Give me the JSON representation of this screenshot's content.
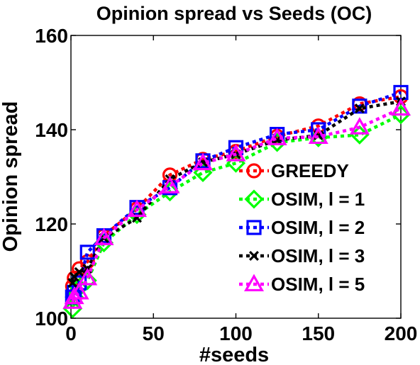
{
  "chart_data": {
    "type": "line",
    "title": "Opinion spread vs Seeds (OC)",
    "xlabel": "#seeds",
    "ylabel": "Opinion spread",
    "xlim": [
      0,
      200
    ],
    "ylim": [
      100,
      160
    ],
    "xticks": [
      0,
      50,
      100,
      150,
      200
    ],
    "yticks": [
      100,
      120,
      140,
      160
    ],
    "grid": false,
    "legend_position": "lower-right",
    "series": [
      {
        "name": "GREEDY",
        "color": "#ff0000",
        "marker": "circle",
        "x": [
          1,
          2,
          5,
          10,
          20,
          40,
          60,
          80,
          100,
          125,
          150,
          175,
          200
        ],
        "y": [
          106.8,
          108.5,
          110.5,
          112.0,
          117.5,
          123.2,
          130.4,
          133.7,
          135.4,
          138.6,
          140.8,
          145.5,
          147.0
        ]
      },
      {
        "name": "OSIM, l = 1",
        "color": "#00ff00",
        "marker": "diamond",
        "x": [
          1,
          2,
          5,
          10,
          20,
          40,
          60,
          80,
          100,
          125,
          150,
          175,
          200
        ],
        "y": [
          102.0,
          104.5,
          106.5,
          108.0,
          116.0,
          122.0,
          126.8,
          130.9,
          132.9,
          137.3,
          138.3,
          138.9,
          143.2
        ]
      },
      {
        "name": "OSIM, l = 2",
        "color": "#0000ff",
        "marker": "square",
        "x": [
          1,
          2,
          5,
          10,
          20,
          40,
          60,
          80,
          100,
          125,
          150,
          175,
          200
        ],
        "y": [
          104.5,
          105.5,
          107.5,
          114.0,
          117.5,
          123.5,
          127.7,
          133.4,
          136.2,
          139.0,
          140.0,
          145.0,
          147.9
        ]
      },
      {
        "name": "OSIM, l = 3",
        "color": "#000000",
        "marker": "x",
        "x": [
          1,
          2,
          5,
          10,
          20,
          40,
          60,
          80,
          100,
          125,
          150,
          175,
          200
        ],
        "y": [
          107.5,
          108.8,
          109.8,
          110.5,
          117.0,
          121.3,
          129.5,
          133.1,
          134.8,
          137.8,
          138.8,
          144.5,
          146.0
        ]
      },
      {
        "name": "OSIM, l = 5",
        "color": "#ff00ff",
        "marker": "triangle",
        "x": [
          1,
          2,
          5,
          10,
          20,
          40,
          60,
          80,
          100,
          125,
          150,
          175,
          200
        ],
        "y": [
          103.5,
          104.5,
          105.5,
          108.5,
          117.0,
          123.0,
          128.0,
          132.9,
          134.8,
          138.2,
          138.5,
          140.5,
          144.5
        ]
      }
    ]
  }
}
